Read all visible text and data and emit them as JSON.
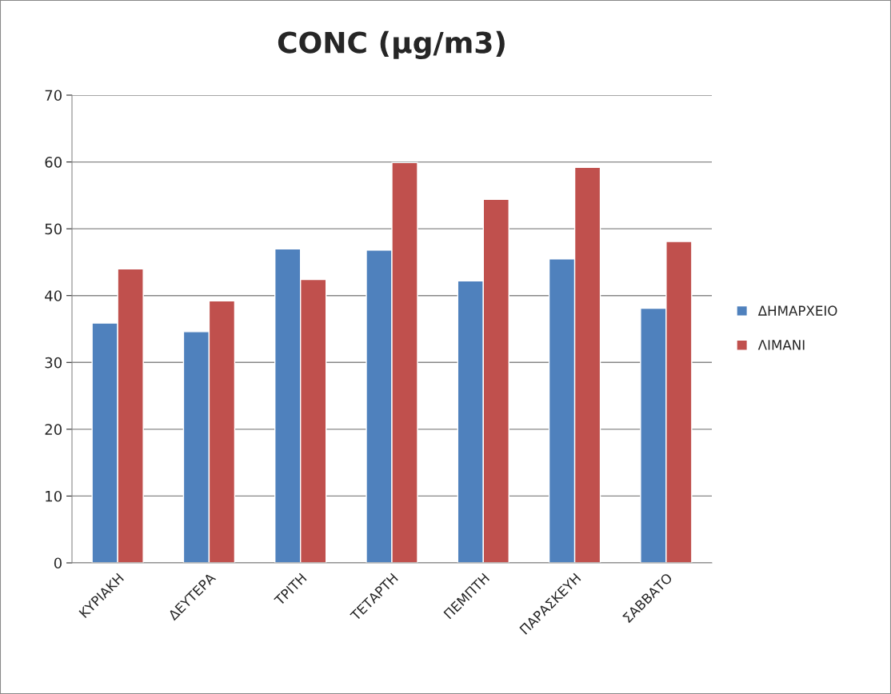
{
  "chart_data": {
    "type": "bar",
    "title": "CONC (μg/m3)",
    "categories": [
      "ΚΥΡΙΑΚΗ",
      "ΔΕΥΤΕΡΑ",
      "ΤΡΙΤΗ",
      "ΤΕΤΑΡΤΗ",
      "ΠΕΜΠΤΗ",
      "ΠΑΡΑΣΚΕΥΗ",
      "ΣΑΒΒΑΤΟ"
    ],
    "series": [
      {
        "name": "ΔΗΜΑΡΧΕΙΟ",
        "color": "#4f81bd",
        "values": [
          35.9,
          34.6,
          47.0,
          46.8,
          42.2,
          45.5,
          38.1
        ]
      },
      {
        "name": "ΛΙΜΑΝΙ",
        "color": "#c0504d",
        "values": [
          44.0,
          39.2,
          42.4,
          59.9,
          54.4,
          59.2,
          48.1
        ]
      }
    ],
    "ylim": [
      0,
      70
    ],
    "yticks": [
      0,
      10,
      20,
      30,
      40,
      50,
      60,
      70
    ],
    "grid": "y",
    "legend": "right"
  }
}
